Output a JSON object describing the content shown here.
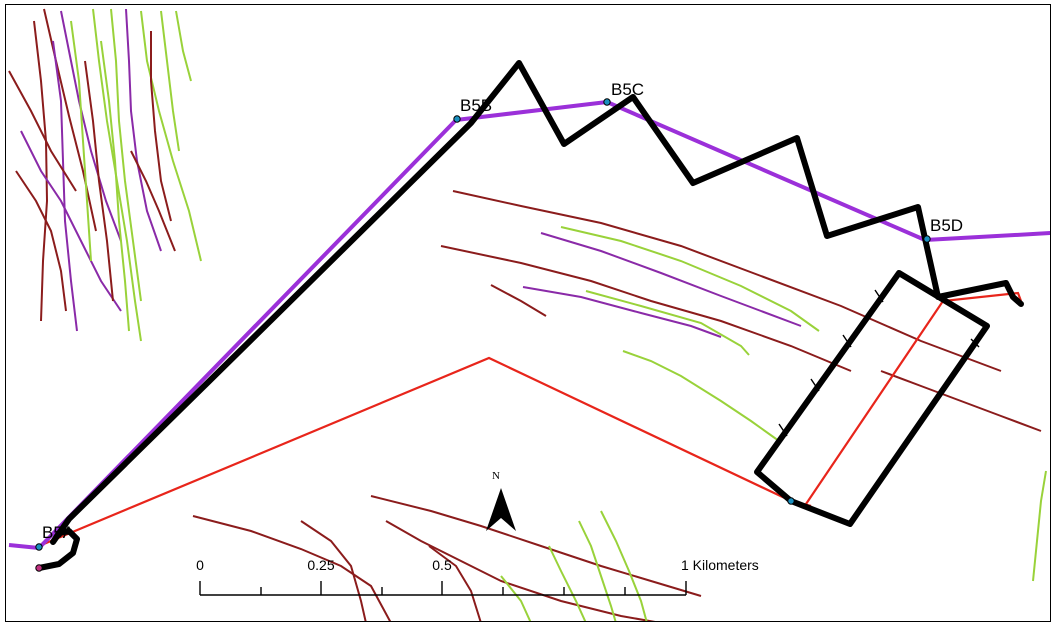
{
  "map": {
    "station_labels": {
      "b5a": "B5A",
      "b5b": "B5B",
      "b5c": "B5C",
      "b5d": "B5D"
    },
    "north_arrow": {
      "letter": "N",
      "icon": "north-arrow-icon"
    },
    "scale_bar": {
      "ticks": [
        "0",
        "0.25",
        "0.5",
        "1 Kilometers"
      ],
      "unit": "Kilometers"
    },
    "colors": {
      "track": "#000000",
      "purple_route": "#9b30d9",
      "red_route": "#e8251b",
      "lime_lines": "#99d23a",
      "maroon_lines": "#8b1c1c",
      "thin_purple_lines": "#8a2aa8",
      "station_point": "#1a8fbf"
    }
  }
}
